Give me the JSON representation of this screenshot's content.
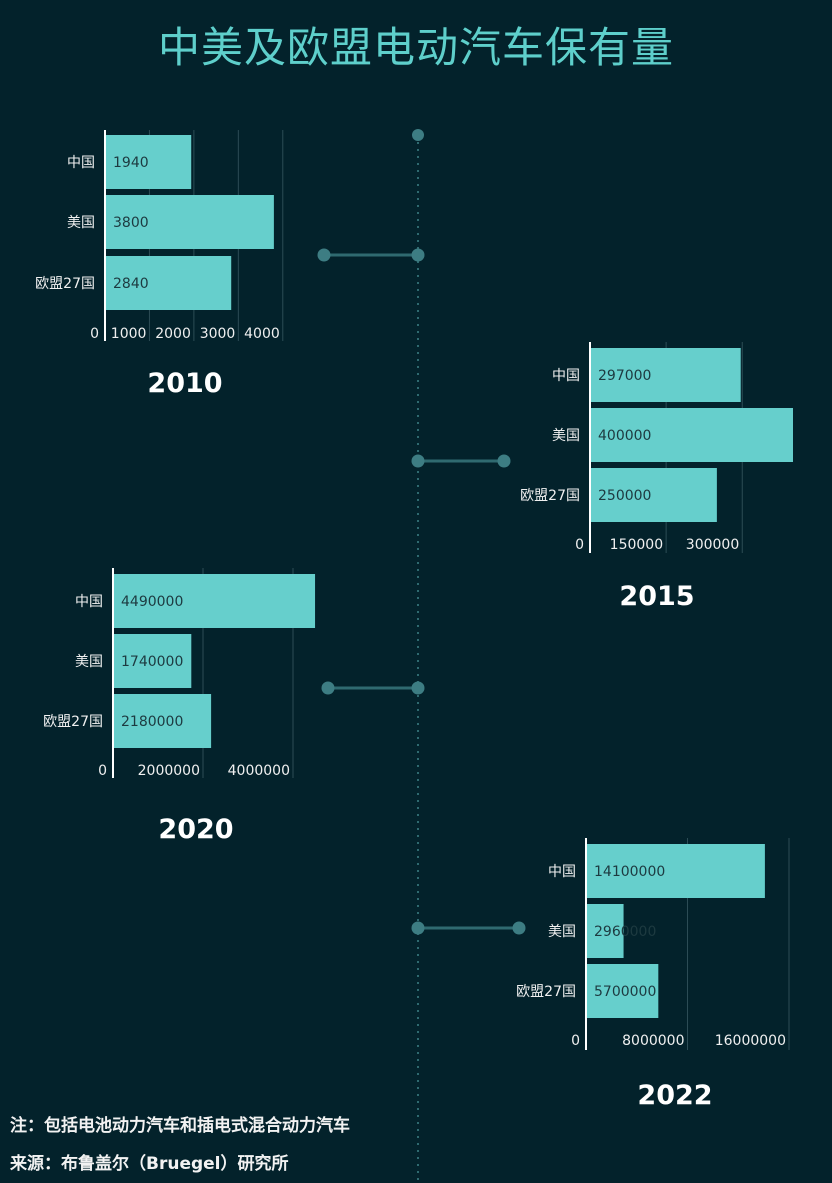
{
  "title": "中美及欧盟电动汽车保有量",
  "note": "注：包括电池动力汽车和插电式混合动力汽车",
  "source": "来源：布鲁盖尔（Bruegel）研究所",
  "colors": {
    "background": "#03222b",
    "bar": "#66cfcc",
    "title": "#5ecfcb",
    "timeline": "#2f6a70",
    "dot": "#3d7d83"
  },
  "chart_data": [
    {
      "type": "bar",
      "year": "2010",
      "categories": [
        "中国",
        "美国",
        "欧盟27国"
      ],
      "values": [
        1940,
        3800,
        2840
      ],
      "data_labels": [
        "1940",
        "3800",
        "2840"
      ],
      "xlim": [
        0,
        4500
      ],
      "xticks": [
        0,
        1000,
        2000,
        3000,
        4000
      ],
      "tick_labels": [
        "0",
        "1000",
        "2000",
        "3000",
        "4000"
      ],
      "orientation": "horizontal",
      "grid": true
    },
    {
      "type": "bar",
      "year": "2015",
      "categories": [
        "中国",
        "美国",
        "欧盟27国"
      ],
      "values": [
        297000,
        400000,
        250000
      ],
      "data_labels": [
        "297000",
        "400000",
        "250000"
      ],
      "xlim": [
        0,
        400000
      ],
      "xticks": [
        0,
        150000,
        300000
      ],
      "tick_labels": [
        "0",
        "150000",
        "300000"
      ],
      "orientation": "horizontal",
      "grid": true
    },
    {
      "type": "bar",
      "year": "2020",
      "categories": [
        "中国",
        "美国",
        "欧盟27国"
      ],
      "values": [
        4490000,
        1740000,
        2180000
      ],
      "data_labels": [
        "4490000",
        "1740000",
        "2180000"
      ],
      "xlim": [
        0,
        6000000
      ],
      "xticks": [
        0,
        2000000,
        4000000
      ],
      "tick_labels": [
        "0",
        "2000000",
        "4000000"
      ],
      "orientation": "horizontal",
      "grid": true
    },
    {
      "type": "bar",
      "year": "2022",
      "categories": [
        "中国",
        "美国",
        "欧盟27国"
      ],
      "values": [
        14100000,
        2960000,
        5700000
      ],
      "data_labels": [
        "14100000",
        "2960000",
        "5700000"
      ],
      "xlim": [
        0,
        16000000
      ],
      "xticks": [
        0,
        8000000,
        16000000
      ],
      "tick_labels": [
        "0",
        "8000000",
        "16000000"
      ],
      "orientation": "horizontal",
      "grid": true
    }
  ]
}
